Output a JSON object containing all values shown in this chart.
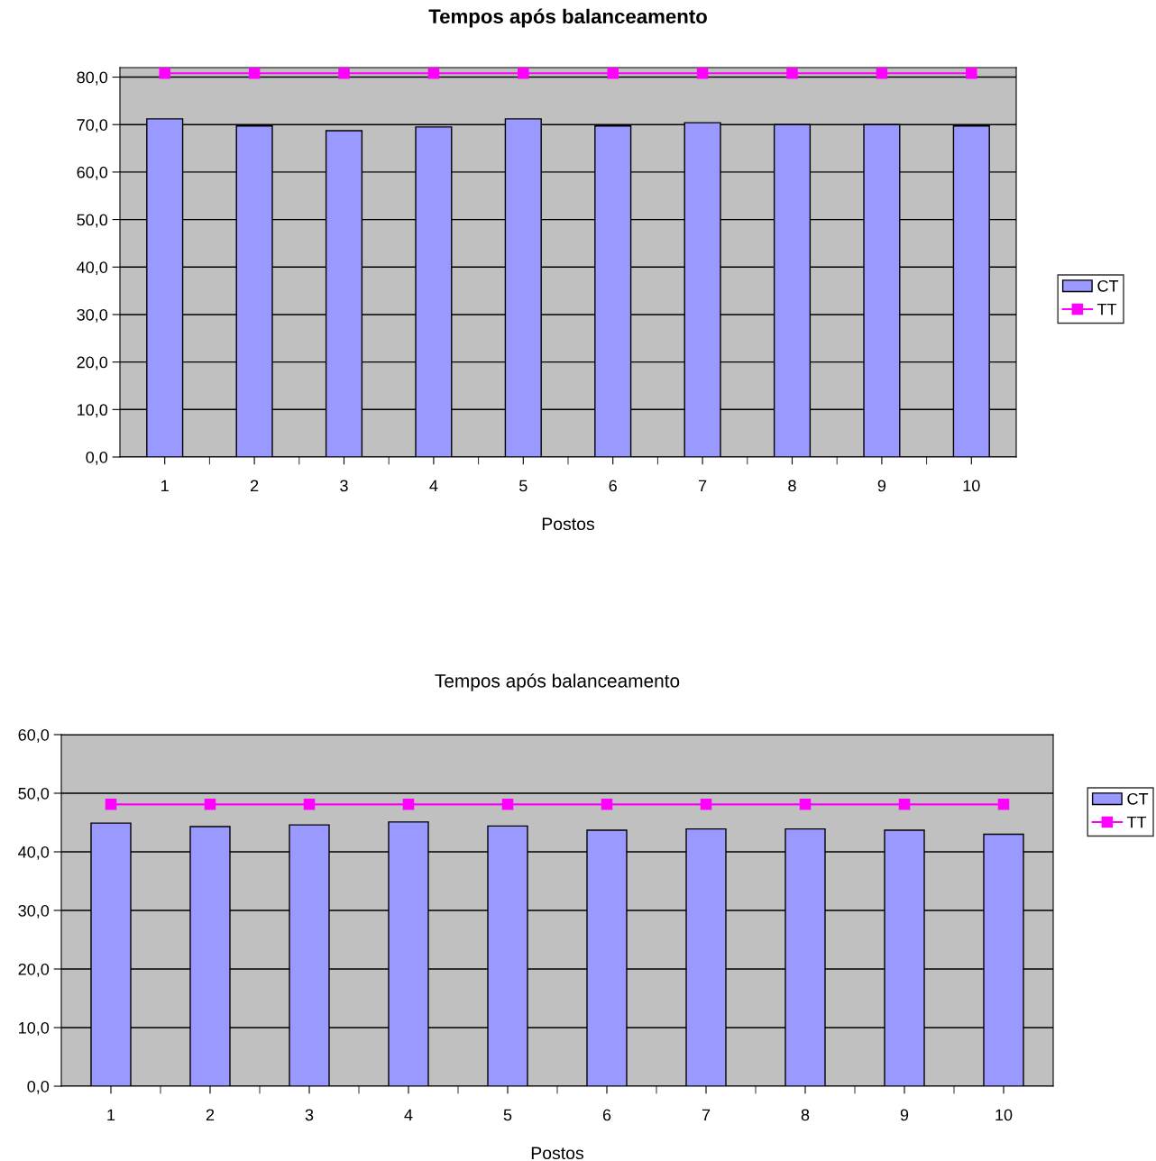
{
  "chart_data": [
    {
      "type": "bar",
      "title": "Tempos após balanceamento",
      "xlabel": "Postos",
      "categories": [
        "1",
        "2",
        "3",
        "4",
        "5",
        "6",
        "7",
        "8",
        "9",
        "10"
      ],
      "series": [
        {
          "name": "CT",
          "color": "#9999ff",
          "values": [
            71.2,
            69.7,
            68.7,
            69.5,
            71.2,
            69.7,
            70.4,
            70.0,
            70.0,
            69.7
          ]
        },
        {
          "name": "TT",
          "type": "line",
          "color": "#ff00ff",
          "marker": "square",
          "values": [
            80.8,
            80.8,
            80.8,
            80.8,
            80.8,
            80.8,
            80.8,
            80.8,
            80.8,
            80.8
          ]
        }
      ],
      "ylim": [
        0,
        82
      ],
      "yticks": [
        {
          "value": 0,
          "label": "0,0"
        },
        {
          "value": 10,
          "label": "10,0"
        },
        {
          "value": 20,
          "label": "20,0"
        },
        {
          "value": 30,
          "label": "30,0"
        },
        {
          "value": 40,
          "label": "40,0"
        },
        {
          "value": 50,
          "label": "50,0"
        },
        {
          "value": 60,
          "label": "60,0"
        },
        {
          "value": 70,
          "label": "70,0"
        },
        {
          "value": 80,
          "label": "80,0"
        }
      ],
      "grid": "y",
      "legend": "right"
    },
    {
      "type": "bar",
      "title": "Tempos após balanceamento",
      "xlabel": "Postos",
      "categories": [
        "1",
        "2",
        "3",
        "4",
        "5",
        "6",
        "7",
        "8",
        "9",
        "10"
      ],
      "series": [
        {
          "name": "CT",
          "color": "#9999ff",
          "values": [
            44.9,
            44.3,
            44.6,
            45.1,
            44.4,
            43.7,
            43.9,
            43.9,
            43.7,
            43.0
          ]
        },
        {
          "name": "TT",
          "type": "line",
          "color": "#ff00ff",
          "marker": "square",
          "values": [
            48.1,
            48.1,
            48.1,
            48.1,
            48.1,
            48.1,
            48.1,
            48.1,
            48.1,
            48.1
          ]
        }
      ],
      "ylim": [
        0,
        60
      ],
      "yticks": [
        {
          "value": 0,
          "label": "0,0"
        },
        {
          "value": 10,
          "label": "10,0"
        },
        {
          "value": 20,
          "label": "20,0"
        },
        {
          "value": 30,
          "label": "30,0"
        },
        {
          "value": 40,
          "label": "40,0"
        },
        {
          "value": 50,
          "label": "50,0"
        },
        {
          "value": 60,
          "label": "60,0"
        }
      ],
      "grid": "y",
      "legend": "right"
    }
  ]
}
